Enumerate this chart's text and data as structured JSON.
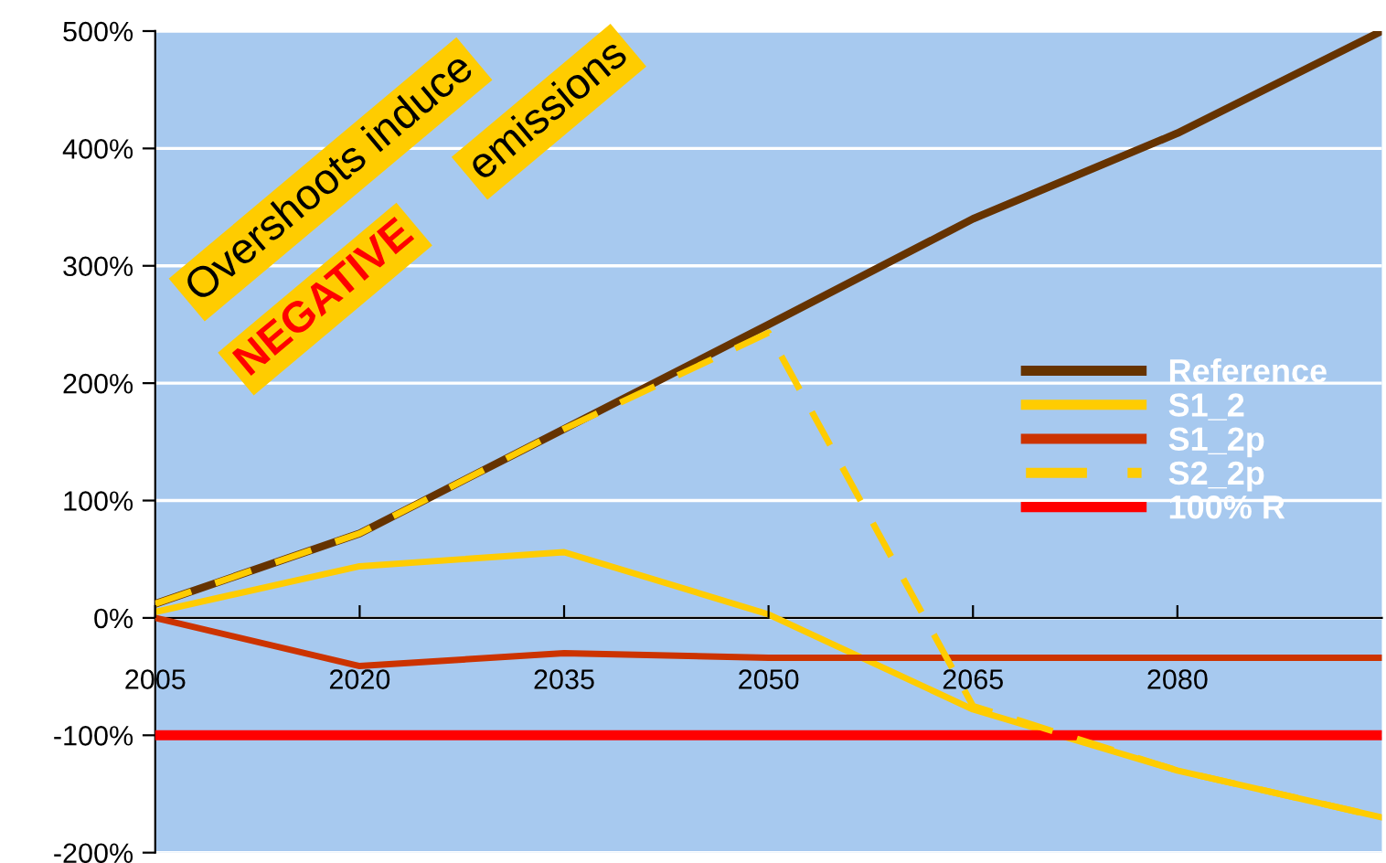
{
  "chart_data": {
    "type": "line",
    "x": [
      2005,
      2020,
      2035,
      2050,
      2065,
      2080,
      2095
    ],
    "series": [
      {
        "name": "Reference",
        "color": "#663300",
        "values": [
          12,
          72,
          161,
          250,
          340,
          413,
          500
        ]
      },
      {
        "name": "S1_2",
        "color": "#ffcc00",
        "values": [
          5,
          44,
          56,
          3,
          -78,
          -130,
          -170
        ]
      },
      {
        "name": "S1_2p",
        "color": "#cc3300",
        "values": [
          0,
          -41,
          -30,
          -34,
          -34,
          -34,
          -34
        ]
      },
      {
        "name": "S2_2p",
        "color": "#ffcc00",
        "line_style": "dashed",
        "values": [
          12,
          72,
          161,
          243,
          -75,
          -130,
          -170
        ]
      },
      {
        "name": "100% R",
        "color": "#ff0000",
        "values": [
          -100,
          -100,
          -100,
          -100,
          -100,
          -100,
          -100
        ]
      }
    ],
    "xlim": [
      2005,
      2095
    ],
    "xticks": [
      2005,
      2020,
      2035,
      2050,
      2065,
      2080
    ],
    "ylim": [
      -200,
      500
    ],
    "yticks": [
      {
        "value": -200,
        "label": "-200%"
      },
      {
        "value": -100,
        "label": "-100%"
      },
      {
        "value": 0,
        "label": "0%"
      },
      {
        "value": 100,
        "label": "100%"
      },
      {
        "value": 200,
        "label": "200%"
      },
      {
        "value": 300,
        "label": "300%"
      },
      {
        "value": 400,
        "label": "400%"
      },
      {
        "value": 500,
        "label": "500%"
      }
    ],
    "grid": "y",
    "legend": "right",
    "marker": "none",
    "annotations": [
      "Overshoots induce",
      "NEGATIVE",
      "emissions"
    ]
  }
}
